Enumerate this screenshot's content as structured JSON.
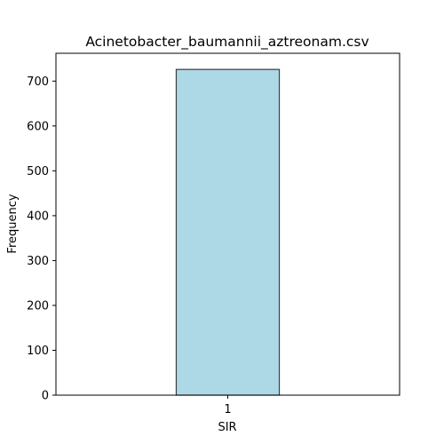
{
  "chart_data": {
    "type": "bar",
    "title": "Acinetobacter_baumannii_aztreonam.csv",
    "xlabel": "SIR",
    "ylabel": "Frequency",
    "categories": [
      "1"
    ],
    "values": [
      726
    ],
    "ylim": [
      0,
      762
    ],
    "xlim": [
      -1.75,
      1.75
    ],
    "yticks": [
      0,
      100,
      200,
      300,
      400,
      500,
      600,
      700
    ],
    "bar_width": 1.05,
    "grid": false,
    "legend": "none",
    "colors": {
      "bar_fill": "#add8e6",
      "bar_stroke": "#3c3c3c",
      "axis": "#000000"
    }
  }
}
